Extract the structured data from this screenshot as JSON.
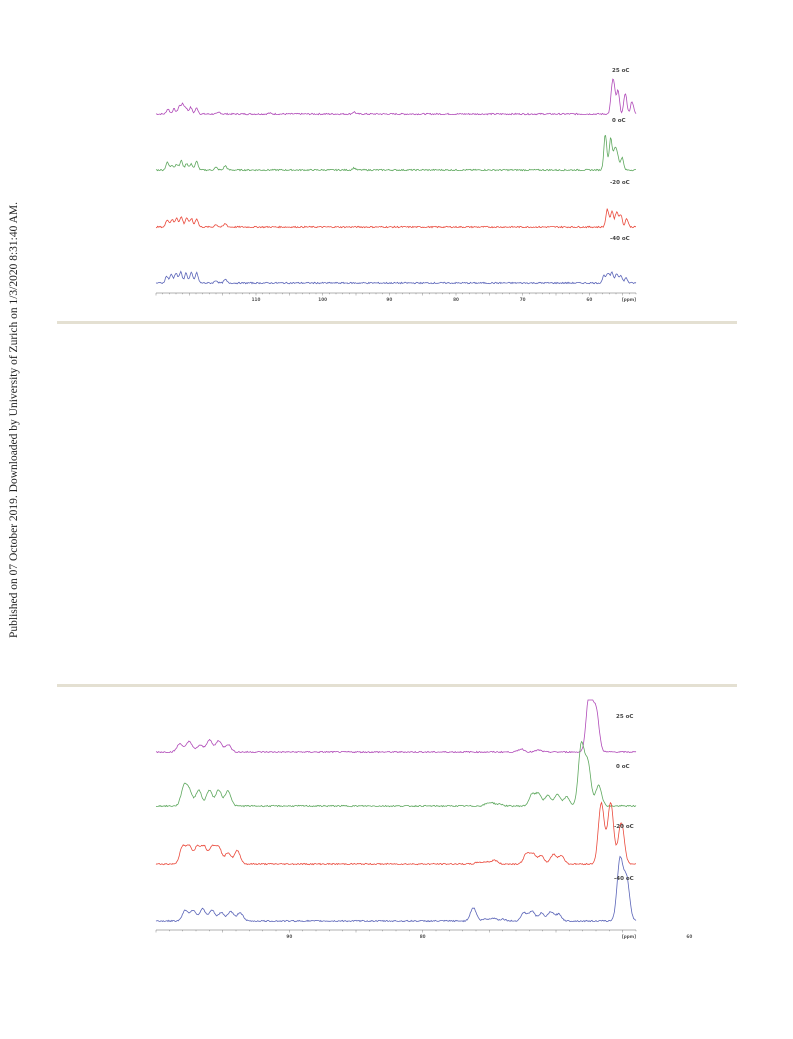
{
  "side_note": "Published on 07 October 2019. Downloaded by University of Zurich on 1/3/2020 8:31:40 AM.",
  "chart_data": [
    {
      "type": "line",
      "subtype": "stacked-nmr-spectra",
      "xlabel": "[ppm]",
      "x_reversed": true,
      "xlim": [
        125,
        53
      ],
      "x_ticks": [
        110,
        100,
        90,
        80,
        70,
        60
      ],
      "series": [
        {
          "name": "25 oC",
          "color": "#b04ab8",
          "peaks": [
            [
              123.2,
              0.12
            ],
            [
              122.3,
              0.12
            ],
            [
              121.5,
              0.18
            ],
            [
              121.0,
              0.22
            ],
            [
              120.5,
              0.14
            ],
            [
              119.8,
              0.16
            ],
            [
              118.9,
              0.14
            ],
            [
              115.5,
              0.04
            ],
            [
              108.0,
              0.02
            ],
            [
              95.3,
              0.05
            ],
            [
              56.6,
              0.5
            ],
            [
              56.3,
              0.55
            ],
            [
              55.7,
              0.55
            ],
            [
              54.6,
              0.5
            ],
            [
              53.6,
              0.3
            ]
          ]
        },
        {
          "name": "0 oC",
          "color": "#5ea85e",
          "peaks": [
            [
              123.3,
              0.18
            ],
            [
              122.6,
              0.12
            ],
            [
              121.9,
              0.14
            ],
            [
              121.2,
              0.22
            ],
            [
              120.4,
              0.16
            ],
            [
              119.7,
              0.14
            ],
            [
              118.9,
              0.2
            ],
            [
              116.0,
              0.06
            ],
            [
              114.6,
              0.1
            ],
            [
              95.3,
              0.05
            ],
            [
              57.6,
              0.85
            ],
            [
              56.8,
              0.75
            ],
            [
              56.2,
              0.45
            ],
            [
              55.8,
              0.35
            ],
            [
              55.1,
              0.3
            ]
          ]
        },
        {
          "name": "-20 oC",
          "color": "#ea4a3c",
          "peaks": [
            [
              123.3,
              0.18
            ],
            [
              122.6,
              0.18
            ],
            [
              121.9,
              0.22
            ],
            [
              121.2,
              0.24
            ],
            [
              120.4,
              0.22
            ],
            [
              119.7,
              0.2
            ],
            [
              118.9,
              0.2
            ],
            [
              116.0,
              0.06
            ],
            [
              114.6,
              0.08
            ],
            [
              57.3,
              0.42
            ],
            [
              56.6,
              0.38
            ],
            [
              55.9,
              0.36
            ],
            [
              55.3,
              0.3
            ],
            [
              54.4,
              0.2
            ]
          ]
        },
        {
          "name": "-40 oC",
          "color": "#5a64b8",
          "peaks": [
            [
              123.4,
              0.16
            ],
            [
              122.7,
              0.2
            ],
            [
              122.0,
              0.24
            ],
            [
              121.3,
              0.26
            ],
            [
              120.5,
              0.24
            ],
            [
              119.7,
              0.24
            ],
            [
              118.9,
              0.24
            ],
            [
              116.0,
              0.06
            ],
            [
              114.6,
              0.08
            ],
            [
              57.8,
              0.18
            ],
            [
              57.2,
              0.22
            ],
            [
              56.6,
              0.24
            ],
            [
              55.9,
              0.22
            ],
            [
              55.3,
              0.18
            ],
            [
              54.5,
              0.12
            ]
          ]
        }
      ]
    },
    {
      "type": "line",
      "subtype": "stacked-nmr-spectra",
      "xlabel": "[ppm]",
      "x_reversed": true,
      "xlim": [
        100,
        64
      ],
      "x_ticks": [
        90,
        80,
        60
      ],
      "series": [
        {
          "name": "25 oC",
          "color": "#b04ab8",
          "peaks": [
            [
              98.2,
              0.22
            ],
            [
              97.5,
              0.28
            ],
            [
              96.7,
              0.18
            ],
            [
              96.0,
              0.32
            ],
            [
              95.3,
              0.3
            ],
            [
              94.6,
              0.2
            ],
            [
              72.6,
              0.08
            ],
            [
              71.3,
              0.05
            ],
            [
              67.5,
              1.6
            ],
            [
              67.0,
              1.1
            ]
          ]
        },
        {
          "name": "0 oC",
          "color": "#5ea85e",
          "peaks": [
            [
              97.9,
              0.5
            ],
            [
              97.5,
              0.38
            ],
            [
              96.8,
              0.42
            ],
            [
              96.0,
              0.42
            ],
            [
              95.3,
              0.42
            ],
            [
              94.6,
              0.4
            ],
            [
              75.2,
              0.05
            ],
            [
              74.8,
              0.08
            ],
            [
              74.2,
              0.05
            ],
            [
              71.8,
              0.3
            ],
            [
              71.3,
              0.32
            ],
            [
              70.6,
              0.28
            ],
            [
              69.9,
              0.3
            ],
            [
              69.2,
              0.24
            ],
            [
              68.1,
              1.6
            ],
            [
              67.6,
              1.1
            ],
            [
              66.8,
              0.55
            ]
          ]
        },
        {
          "name": "-20 oC",
          "color": "#ea4a3c",
          "peaks": [
            [
              98.0,
              0.45
            ],
            [
              97.5,
              0.45
            ],
            [
              96.9,
              0.45
            ],
            [
              96.4,
              0.45
            ],
            [
              95.8,
              0.45
            ],
            [
              95.3,
              0.45
            ],
            [
              94.6,
              0.3
            ],
            [
              93.9,
              0.35
            ],
            [
              75.8,
              0.05
            ],
            [
              75.2,
              0.06
            ],
            [
              74.6,
              0.1
            ],
            [
              72.2,
              0.28
            ],
            [
              71.7,
              0.25
            ],
            [
              71.1,
              0.22
            ],
            [
              70.2,
              0.25
            ],
            [
              69.6,
              0.22
            ],
            [
              66.6,
              1.6
            ],
            [
              65.9,
              1.6
            ],
            [
              65.1,
              1.1
            ]
          ]
        },
        {
          "name": "-40 oC",
          "color": "#5a64b8",
          "peaks": [
            [
              97.8,
              0.28
            ],
            [
              97.2,
              0.28
            ],
            [
              96.5,
              0.32
            ],
            [
              95.8,
              0.28
            ],
            [
              95.1,
              0.22
            ],
            [
              94.4,
              0.25
            ],
            [
              93.7,
              0.22
            ],
            [
              76.2,
              0.35
            ],
            [
              75.3,
              0.05
            ],
            [
              74.7,
              0.08
            ],
            [
              74.0,
              0.05
            ],
            [
              72.4,
              0.22
            ],
            [
              71.8,
              0.26
            ],
            [
              71.1,
              0.2
            ],
            [
              70.4,
              0.24
            ],
            [
              69.8,
              0.18
            ],
            [
              65.2,
              1.6
            ],
            [
              64.7,
              1.1
            ]
          ]
        }
      ]
    }
  ]
}
